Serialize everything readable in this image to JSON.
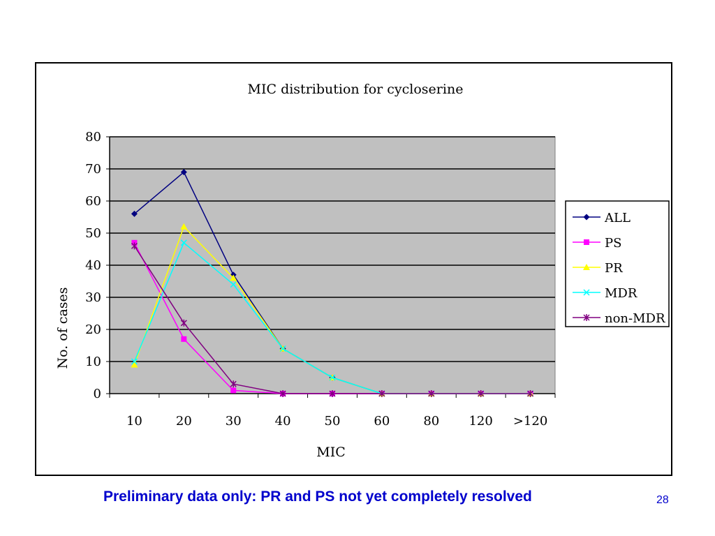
{
  "slide": {
    "caption": "Preliminary data only: PR and PS not yet completely resolved",
    "page_number": "28"
  },
  "chart_data": {
    "type": "line",
    "title": "MIC distribution for cycloserine",
    "xlabel": "MIC",
    "ylabel": "No. of cases",
    "categories": [
      "10",
      "20",
      "30",
      "40",
      "50",
      "60",
      "80",
      "120",
      ">120"
    ],
    "ylim": [
      0,
      80
    ],
    "yticks": [
      0,
      10,
      20,
      30,
      40,
      50,
      60,
      70,
      80
    ],
    "grid": true,
    "plot_background": "#c0c0c0",
    "legend_position": "right",
    "series": [
      {
        "name": "ALL",
        "color": "#000080",
        "marker": "diamond",
        "values": [
          56,
          69,
          37,
          14,
          5,
          0,
          0,
          0,
          0
        ]
      },
      {
        "name": "PS",
        "color": "#ff00ff",
        "marker": "square",
        "values": [
          47,
          17,
          1,
          0,
          0,
          0,
          0,
          0,
          0
        ]
      },
      {
        "name": "PR",
        "color": "#ffff00",
        "marker": "triangle",
        "values": [
          9,
          52,
          36,
          14,
          5,
          0,
          0,
          0,
          0
        ]
      },
      {
        "name": "MDR",
        "color": "#00ffff",
        "marker": "x",
        "values": [
          10,
          47,
          34,
          14,
          5,
          0,
          0,
          0,
          0
        ]
      },
      {
        "name": "non-MDR",
        "color": "#800080",
        "marker": "asterisk",
        "values": [
          46,
          22,
          3,
          0,
          0,
          0,
          0,
          0,
          0
        ]
      }
    ]
  }
}
